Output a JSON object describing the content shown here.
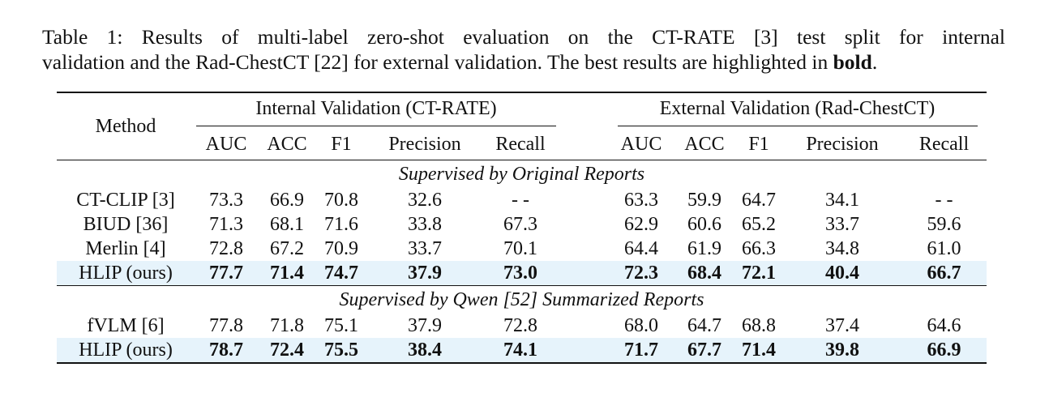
{
  "caption": {
    "line1": "Table 1: Results of multi-label zero-shot evaluation on the CT-RATE [3] test split for internal",
    "line2_prefix": "validation and the Rad-ChestCT [22] for external validation. The best results are highlighted in ",
    "line2_bold": "bold",
    "line2_suffix": "."
  },
  "header": {
    "method": "Method",
    "group_internal": "Internal Validation (CT-RATE)",
    "group_external": "External Validation (Rad-ChestCT)",
    "metrics": [
      "AUC",
      "ACC",
      "F1",
      "Precision",
      "Recall"
    ]
  },
  "sections": [
    {
      "title": "Supervised by Original Reports",
      "rows": [
        {
          "method": "CT-CLIP [3]",
          "internal": [
            "73.3",
            "66.9",
            "70.8",
            "32.6",
            "- -"
          ],
          "external": [
            "63.3",
            "59.9",
            "64.7",
            "34.1",
            "- -"
          ]
        },
        {
          "method": "BIUD [36]",
          "internal": [
            "71.3",
            "68.1",
            "71.6",
            "33.8",
            "67.3"
          ],
          "external": [
            "62.9",
            "60.6",
            "65.2",
            "33.7",
            "59.6"
          ]
        },
        {
          "method": "Merlin [4]",
          "internal": [
            "72.8",
            "67.2",
            "70.9",
            "33.7",
            "70.1"
          ],
          "external": [
            "64.4",
            "61.9",
            "66.3",
            "34.8",
            "61.0"
          ]
        },
        {
          "method": "HLIP (ours)",
          "internal": [
            "77.7",
            "71.4",
            "74.7",
            "37.9",
            "73.0"
          ],
          "external": [
            "72.3",
            "68.4",
            "72.1",
            "40.4",
            "66.7"
          ]
        }
      ]
    },
    {
      "title": "Supervised by Qwen [52] Summarized Reports",
      "rows": [
        {
          "method": "fVLM [6]",
          "internal": [
            "77.8",
            "71.8",
            "75.1",
            "37.9",
            "72.8"
          ],
          "external": [
            "68.0",
            "64.7",
            "68.8",
            "37.4",
            "64.6"
          ]
        },
        {
          "method": "HLIP (ours)",
          "internal": [
            "78.7",
            "72.4",
            "75.5",
            "38.4",
            "74.1"
          ],
          "external": [
            "71.7",
            "67.7",
            "71.4",
            "39.8",
            "66.9"
          ]
        }
      ]
    }
  ],
  "highlight_color": "#e6f3fb"
}
